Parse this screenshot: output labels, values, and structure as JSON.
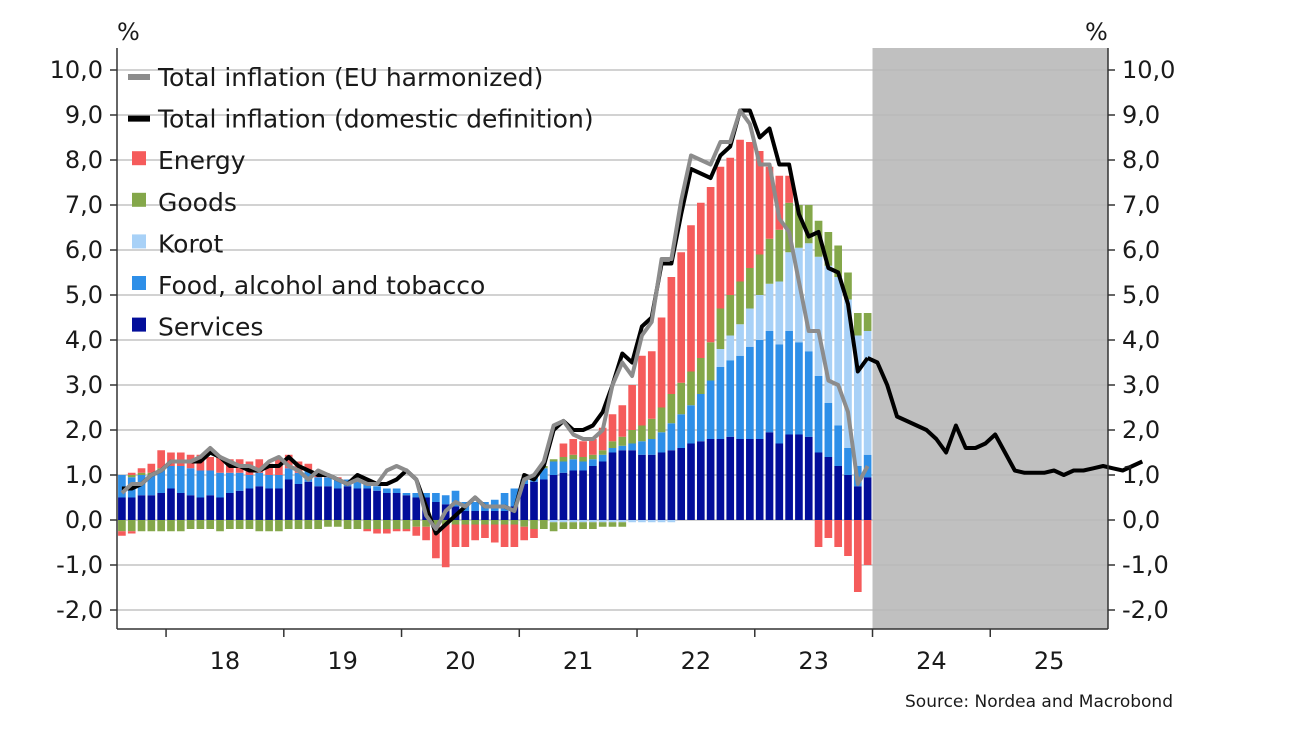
{
  "chart_data": {
    "type": "bar",
    "left_unit": "%",
    "right_unit": "%",
    "ylim": [
      -2.5,
      10.5
    ],
    "yticks": [
      10,
      9,
      8,
      7,
      6,
      5,
      4,
      3,
      2,
      1,
      0,
      -1,
      -2
    ],
    "ytick_labels": [
      "10,0",
      "9,0",
      "8,0",
      "7,0",
      "6,0",
      "5,0",
      "4,0",
      "3,0",
      "2,0",
      "1,0",
      "0,0",
      "-1,0",
      "-2,0"
    ],
    "x_start": "2017-08",
    "x_end": "2025-12",
    "forecast_start": "2024-01",
    "x_year_labels": [
      "18",
      "19",
      "20",
      "21",
      "22",
      "23",
      "24",
      "25"
    ],
    "source": "Source: Nordea and Macrobond",
    "legend": [
      {
        "label": "Total inflation (EU harmonized)",
        "type": "line",
        "color": "#8c8c8c"
      },
      {
        "label": "Total inflation (domestic definition)",
        "type": "line",
        "color": "#000000"
      },
      {
        "label": "Energy",
        "type": "bar",
        "color": "#f55b5b"
      },
      {
        "label": "Goods",
        "type": "bar",
        "color": "#84a74a"
      },
      {
        "label": "Korot",
        "type": "bar",
        "color": "#a8d1f7"
      },
      {
        "label": "Food, alcohol and tobacco",
        "type": "bar",
        "color": "#2e8fe8"
      },
      {
        "label": "Services",
        "type": "bar",
        "color": "#030e9a"
      }
    ],
    "bar_months": [
      "2017-08",
      "2017-09",
      "2017-10",
      "2017-11",
      "2017-12",
      "2018-01",
      "2018-02",
      "2018-03",
      "2018-04",
      "2018-05",
      "2018-06",
      "2018-07",
      "2018-08",
      "2018-09",
      "2018-10",
      "2018-11",
      "2018-12",
      "2019-01",
      "2019-02",
      "2019-03",
      "2019-04",
      "2019-05",
      "2019-06",
      "2019-07",
      "2019-08",
      "2019-09",
      "2019-10",
      "2019-11",
      "2019-12",
      "2020-01",
      "2020-02",
      "2020-03",
      "2020-04",
      "2020-05",
      "2020-06",
      "2020-07",
      "2020-08",
      "2020-09",
      "2020-10",
      "2020-11",
      "2020-12",
      "2021-01",
      "2021-02",
      "2021-03",
      "2021-04",
      "2021-05",
      "2021-06",
      "2021-07",
      "2021-08",
      "2021-09",
      "2021-10",
      "2021-11",
      "2021-12",
      "2022-01",
      "2022-02",
      "2022-03",
      "2022-04",
      "2022-05",
      "2022-06",
      "2022-07",
      "2022-08",
      "2022-09",
      "2022-10",
      "2022-11",
      "2022-12",
      "2023-01",
      "2023-02",
      "2023-03",
      "2023-04",
      "2023-05",
      "2023-06",
      "2023-07",
      "2023-08",
      "2023-09",
      "2023-10",
      "2023-11",
      "2023-12"
    ],
    "series": [
      {
        "name": "Services",
        "values": [
          0.5,
          0.5,
          0.55,
          0.55,
          0.6,
          0.7,
          0.6,
          0.55,
          0.5,
          0.55,
          0.5,
          0.6,
          0.65,
          0.7,
          0.75,
          0.7,
          0.7,
          0.9,
          0.8,
          0.85,
          0.75,
          0.75,
          0.7,
          0.75,
          0.7,
          0.7,
          0.65,
          0.6,
          0.6,
          0.55,
          0.5,
          0.5,
          0.4,
          0.35,
          0.3,
          0.2,
          0.2,
          0.2,
          0.2,
          0.2,
          0.3,
          0.8,
          0.85,
          0.9,
          1.0,
          1.05,
          1.1,
          1.1,
          1.2,
          1.3,
          1.5,
          1.55,
          1.55,
          1.45,
          1.45,
          1.5,
          1.55,
          1.6,
          1.7,
          1.75,
          1.8,
          1.8,
          1.85,
          1.8,
          1.8,
          1.8,
          1.95,
          1.7,
          1.9,
          1.9,
          1.85,
          1.5,
          1.4,
          1.2,
          1.0,
          0.75,
          0.95
        ]
      },
      {
        "name": "Food, alcohol and tobacco",
        "values": [
          0.5,
          0.45,
          0.45,
          0.45,
          0.5,
          0.5,
          0.6,
          0.6,
          0.6,
          0.55,
          0.55,
          0.45,
          0.4,
          0.3,
          0.3,
          0.3,
          0.3,
          0.25,
          0.25,
          0.25,
          0.2,
          0.2,
          0.2,
          0.15,
          0.15,
          0.15,
          0.1,
          0.1,
          0.1,
          0.05,
          0.1,
          0.1,
          0.2,
          0.2,
          0.35,
          0.2,
          0.2,
          0.2,
          0.25,
          0.4,
          0.4,
          0.1,
          0.1,
          0.25,
          0.3,
          0.25,
          0.25,
          0.2,
          0.15,
          0.15,
          0.1,
          0.1,
          0.15,
          0.3,
          0.35,
          0.45,
          0.6,
          0.75,
          0.85,
          1.05,
          1.3,
          1.6,
          1.7,
          1.85,
          2.05,
          2.2,
          2.25,
          2.2,
          2.3,
          2.05,
          1.9,
          1.7,
          1.2,
          0.9,
          0.6,
          0.45,
          0.5
        ]
      },
      {
        "name": "Korot",
        "values": [
          0,
          0,
          0,
          0,
          0,
          0,
          0,
          0,
          0,
          0,
          0,
          0,
          0,
          0,
          0,
          0,
          0,
          0,
          0,
          0,
          0,
          0,
          0,
          0,
          0,
          0,
          0,
          0,
          0,
          0,
          0,
          0,
          0,
          0,
          0,
          0,
          0,
          0,
          0,
          0,
          0,
          0,
          0,
          0,
          0,
          0,
          0,
          0,
          0,
          0,
          0,
          0,
          0,
          0,
          0,
          0,
          0,
          0,
          0,
          0,
          0,
          0.4,
          0.55,
          0.7,
          0.85,
          1.0,
          1.05,
          1.4,
          1.75,
          2.1,
          2.4,
          2.65,
          3.05,
          3.3,
          3.3,
          2.9,
          2.75
        ]
      },
      {
        "name": "Goods",
        "values": [
          0,
          0.05,
          0.05,
          0.05,
          0.05,
          0,
          0,
          0,
          0,
          0,
          0,
          0,
          0,
          0,
          0,
          0,
          0,
          0,
          0,
          0,
          0,
          0,
          0,
          0,
          0,
          0,
          0,
          0,
          0,
          0,
          0,
          0,
          0,
          0,
          0,
          0,
          0,
          0,
          0,
          0,
          0,
          0,
          0,
          0.05,
          0.05,
          0.1,
          0.1,
          0.1,
          0.1,
          0.1,
          0.15,
          0.2,
          0.3,
          0.35,
          0.45,
          0.55,
          0.65,
          0.7,
          0.75,
          0.8,
          0.85,
          0.9,
          0.9,
          0.95,
          0.9,
          0.9,
          1.0,
          1.15,
          1.1,
          0.95,
          0.85,
          0.8,
          0.75,
          0.7,
          0.6,
          0.5,
          0.4
        ]
      },
      {
        "name": "Energy",
        "values": [
          0,
          0.05,
          0.1,
          0.2,
          0.4,
          0.3,
          0.3,
          0.3,
          0.35,
          0.3,
          0.35,
          0.3,
          0.3,
          0.3,
          0.3,
          0.25,
          0.35,
          0.3,
          0.25,
          0.15,
          0.1,
          0.05,
          0.05,
          0,
          0,
          0,
          0,
          0,
          0,
          0,
          0,
          0,
          0,
          0,
          0,
          0,
          0,
          0,
          0,
          0,
          0,
          0,
          0,
          0,
          0,
          0.3,
          0.35,
          0.35,
          0.35,
          0.5,
          0.6,
          0.7,
          1.0,
          1.55,
          1.5,
          2.0,
          2.6,
          2.9,
          3.25,
          3.45,
          3.45,
          3.15,
          3.05,
          3.15,
          2.8,
          2.3,
          1.6,
          1.2,
          0.6,
          0,
          0,
          0,
          0,
          0,
          0,
          0,
          0
        ]
      },
      {
        "name": "Services (negative)",
        "values": [
          0,
          0,
          0,
          0,
          0,
          0,
          0,
          0,
          0,
          0,
          0,
          0,
          0,
          0,
          0,
          0,
          0,
          0,
          0,
          0,
          0,
          0,
          0,
          0,
          0,
          0,
          0,
          0,
          0,
          0,
          0,
          0,
          0,
          0,
          0,
          0,
          0,
          0,
          0,
          0,
          0,
          0,
          0,
          0,
          0,
          0,
          0,
          0,
          0,
          0,
          0,
          0,
          0,
          0,
          0,
          0,
          0,
          0,
          0,
          0,
          0,
          0,
          0,
          0,
          0,
          0,
          0,
          0,
          0,
          0,
          0,
          0,
          0,
          0,
          0,
          0,
          0
        ]
      },
      {
        "name": "Food, alcohol and tobacco (negative)",
        "values": [
          0,
          0,
          0,
          0,
          0,
          0,
          0,
          0,
          0,
          0,
          0,
          0,
          0,
          0,
          0,
          0,
          0,
          0,
          0,
          0,
          0,
          0,
          0,
          0,
          0,
          0,
          0,
          0,
          0,
          0,
          0,
          0,
          0,
          0,
          0,
          0,
          0,
          0,
          0,
          0,
          0,
          0,
          0,
          0,
          0,
          0,
          0,
          0,
          0,
          0,
          0,
          0,
          0,
          0,
          0,
          0,
          0,
          0,
          0,
          0,
          0,
          0,
          0,
          0,
          0,
          0,
          0,
          0,
          0,
          0,
          0,
          0,
          0,
          0,
          0,
          0,
          0
        ]
      },
      {
        "name": "Korot (negative)",
        "values": [
          0,
          0,
          0,
          0,
          0,
          0,
          0,
          0,
          0,
          0,
          0,
          0,
          0,
          0,
          0,
          0,
          0,
          0,
          0,
          0,
          0,
          0,
          0,
          0,
          0,
          0,
          0,
          0,
          0,
          0,
          0,
          0,
          0,
          0,
          0,
          0,
          0,
          0,
          0,
          0,
          0,
          0,
          0,
          0,
          -0.05,
          -0.05,
          -0.05,
          -0.05,
          -0.05,
          -0.05,
          -0.05,
          -0.05,
          -0.05,
          -0.05,
          -0.05,
          -0.05,
          -0.05,
          0,
          0,
          0,
          0,
          0,
          0,
          0,
          0,
          0,
          0,
          0,
          0,
          0,
          0,
          0,
          0,
          0,
          0,
          0,
          0
        ]
      },
      {
        "name": "Goods (negative)",
        "values": [
          -0.25,
          -0.25,
          -0.25,
          -0.25,
          -0.25,
          -0.25,
          -0.25,
          -0.2,
          -0.2,
          -0.2,
          -0.25,
          -0.2,
          -0.2,
          -0.2,
          -0.25,
          -0.25,
          -0.25,
          -0.2,
          -0.2,
          -0.2,
          -0.2,
          -0.15,
          -0.15,
          -0.2,
          -0.2,
          -0.2,
          -0.2,
          -0.2,
          -0.2,
          -0.2,
          -0.15,
          -0.15,
          -0.15,
          -0.1,
          -0.1,
          -0.1,
          -0.1,
          -0.1,
          -0.1,
          -0.1,
          -0.1,
          -0.15,
          -0.2,
          -0.2,
          -0.2,
          -0.15,
          -0.15,
          -0.15,
          -0.15,
          -0.1,
          -0.1,
          -0.1,
          0,
          0,
          0,
          0,
          0,
          0,
          0,
          0,
          0,
          0,
          0,
          0,
          0,
          0,
          0,
          0,
          0,
          0,
          0,
          0,
          0,
          0,
          0,
          0,
          0
        ]
      },
      {
        "name": "Energy (negative)",
        "values": [
          -0.1,
          -0.05,
          0,
          0,
          0,
          0,
          0,
          0,
          0,
          0,
          0,
          0,
          0,
          0,
          0,
          0,
          0,
          0,
          0,
          0,
          0,
          0,
          0,
          0,
          0,
          -0.05,
          -0.1,
          -0.1,
          -0.05,
          -0.05,
          -0.2,
          -0.3,
          -0.7,
          -0.95,
          -0.5,
          -0.5,
          -0.35,
          -0.3,
          -0.4,
          -0.5,
          -0.5,
          -0.3,
          -0.2,
          0,
          0,
          0,
          0,
          0,
          0,
          0,
          0,
          0,
          0,
          0,
          0,
          0,
          0,
          0,
          0,
          0,
          0,
          0,
          0,
          0,
          0,
          0,
          0,
          0,
          0,
          0,
          0,
          -0.6,
          -0.4,
          -0.6,
          -0.8,
          -1.6,
          -1.0
        ]
      },
      {
        "name": "Total inflation (EU harmonized)",
        "values": [
          0.6,
          0.8,
          0.8,
          1.0,
          1.1,
          1.3,
          1.3,
          1.3,
          1.4,
          1.6,
          1.4,
          1.3,
          1.2,
          1.2,
          1.1,
          1.3,
          1.4,
          1.2,
          1.1,
          0.9,
          1.1,
          1.0,
          0.9,
          0.8,
          0.9,
          0.8,
          0.8,
          1.1,
          1.2,
          1.1,
          0.9,
          0.1,
          -0.2,
          0.2,
          0.4,
          0.3,
          0.5,
          0.3,
          0.3,
          0.3,
          0.2,
          0.9,
          1.0,
          1.3,
          2.1,
          2.2,
          1.9,
          1.8,
          1.8,
          2.0,
          3.0,
          3.5,
          3.2,
          4.1,
          4.4,
          5.8,
          5.8,
          7.1,
          8.1,
          8.0,
          7.9,
          8.4,
          8.4,
          9.1,
          8.8,
          7.9,
          7.9,
          6.7,
          6.4,
          5.3,
          4.2,
          4.2,
          3.1,
          3.0,
          2.4,
          0.8,
          1.2
        ]
      },
      {
        "name": "Total inflation (domestic definition)",
        "values": [
          0.7,
          0.7,
          0.8,
          1.0,
          1.1,
          1.3,
          1.3,
          1.3,
          1.3,
          1.5,
          1.4,
          1.2,
          1.2,
          1.1,
          1.1,
          1.2,
          1.2,
          1.4,
          1.2,
          1.1,
          1.0,
          1.0,
          0.9,
          0.8,
          1.0,
          0.9,
          0.8,
          0.8,
          0.9,
          1.1,
          0.9,
          0.3,
          -0.3,
          -0.1,
          0.1,
          0.3,
          0.5,
          0.3,
          0.3,
          0.3,
          0.2,
          1.0,
          0.9,
          1.2,
          2.0,
          2.2,
          2.0,
          2.0,
          2.1,
          2.4,
          3.0,
          3.7,
          3.5,
          4.3,
          4.5,
          5.7,
          5.7,
          6.8,
          7.8,
          7.7,
          7.6,
          8.1,
          8.3,
          9.1,
          9.1,
          8.5,
          8.7,
          7.9,
          7.9,
          6.8,
          6.3,
          6.4,
          5.6,
          5.5,
          4.8,
          3.3,
          3.6
        ]
      },
      {
        "name": "Total inflation (domestic definition) forecast",
        "values": [
          3.5,
          3.0,
          2.3,
          2.2,
          2.1,
          2.0,
          1.8,
          1.5,
          2.1,
          1.6,
          1.6,
          1.7,
          1.9,
          1.5,
          1.1,
          1.05,
          1.05,
          1.05,
          1.1,
          1.0,
          1.1,
          1.1,
          1.15,
          1.2,
          1.15,
          1.1,
          1.2,
          1.3
        ]
      }
    ]
  }
}
